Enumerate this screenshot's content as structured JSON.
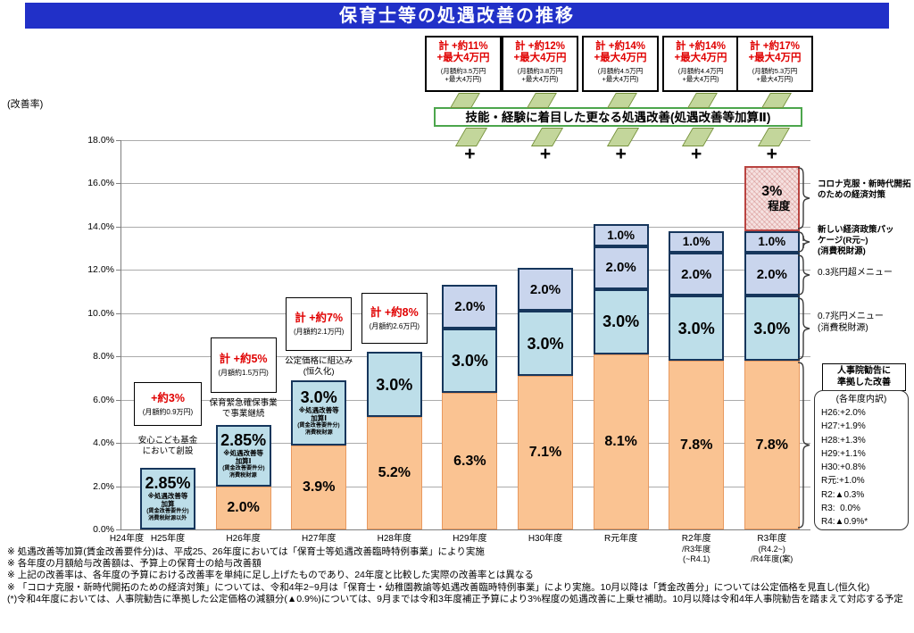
{
  "title": "保育士等の処遇改善の推移",
  "y_axis": {
    "unit_label": "(改善率)",
    "ticks": [
      {
        "v": 18,
        "label": "18.0%"
      },
      {
        "v": 16,
        "label": "16.0%"
      },
      {
        "v": 14,
        "label": "14.0%"
      },
      {
        "v": 12,
        "label": "12.0%"
      },
      {
        "v": 10,
        "label": "10.0%"
      },
      {
        "v": 8,
        "label": "8.0%"
      },
      {
        "v": 6,
        "label": "6.0%"
      },
      {
        "v": 4,
        "label": "4.0%"
      },
      {
        "v": 2,
        "label": "2.0%"
      },
      {
        "v": 0,
        "label": "0.0%"
      }
    ]
  },
  "banner": "技能・経験に着目した更なる処遇改善(処遇改善等加算Ⅱ)",
  "plus_sign": "+",
  "top_boxes": [
    {
      "red_lines": [
        "計 +約11%",
        "+最大4万円"
      ],
      "small_lines": [
        "(月額約3.5万円",
        "+最大4万円)"
      ]
    },
    {
      "red_lines": [
        "計 +約12%",
        "+最大4万円"
      ],
      "small_lines": [
        "(月額約3.8万円",
        "+最大4万円)"
      ]
    },
    {
      "red_lines": [
        "計 +約14%",
        "+最大4万円"
      ],
      "small_lines": [
        "(月額約4.5万円",
        "+最大4万円)"
      ]
    },
    {
      "red_lines": [
        "計 +約14%",
        "+最大4万円"
      ],
      "small_lines": [
        "(月額約4.4万円",
        "+最大4万円)"
      ]
    },
    {
      "red_lines": [
        "計 +約17%",
        "+最大4万円"
      ],
      "small_lines": [
        "(月額約5.3万円",
        "+最大4万円)"
      ]
    }
  ],
  "columns": [
    {
      "label_lines": [
        "H24年度"
      ],
      "segments": []
    },
    {
      "label_lines": [
        "H25年度"
      ],
      "segments": [
        {
          "color": "teal",
          "value": 2.85,
          "label": "2.85%",
          "sublines": [
            "※処遇改善等",
            "加算",
            "(賃金改善要件分)",
            "消費税財源以外"
          ]
        }
      ],
      "callout": {
        "red_line": "+約3%",
        "small_line": "(月額約0.9万円)",
        "caption": [
          "安心こども基金",
          "において創設"
        ]
      }
    },
    {
      "label_lines": [
        "H26年度"
      ],
      "segments": [
        {
          "color": "orange",
          "value": 2.0,
          "label": "2.0%"
        },
        {
          "color": "teal",
          "value": 2.85,
          "label": "2.85%",
          "sublines": [
            "※処遇改善等",
            "加算Ⅰ",
            "(賃金改善要件分)",
            "消費税財源"
          ]
        }
      ],
      "callout": {
        "red_line": "計 +約5%",
        "small_line": "(月額約1.5万円)",
        "caption": [
          "保育緊急確保事業",
          "で事業継続"
        ]
      }
    },
    {
      "label_lines": [
        "H27年度"
      ],
      "segments": [
        {
          "color": "orange",
          "value": 3.9,
          "label": "3.9%"
        },
        {
          "color": "teal",
          "value": 3.0,
          "label": "3.0%",
          "sublines": [
            "※処遇改善等",
            "加算Ⅰ",
            "(賃金改善要件分)",
            "消費税財源"
          ]
        }
      ],
      "callout": {
        "red_line": "計 +約7%",
        "small_line": "(月額約2.1万円)",
        "caption": [
          "公定価格に組込み",
          "(恒久化)"
        ]
      }
    },
    {
      "label_lines": [
        "H28年度"
      ],
      "segments": [
        {
          "color": "orange",
          "value": 5.2,
          "label": "5.2%"
        },
        {
          "color": "teal",
          "value": 3.0,
          "label": "3.0%"
        }
      ],
      "callout": {
        "red_line": "計 +約8%",
        "small_line": "(月額約2.6万円)"
      }
    },
    {
      "label_lines": [
        "H29年度"
      ],
      "segments": [
        {
          "color": "orange",
          "value": 6.3,
          "label": "6.3%"
        },
        {
          "color": "teal",
          "value": 3.0,
          "label": "3.0%"
        },
        {
          "color": "purple",
          "value": 2.0,
          "label": "2.0%"
        }
      ]
    },
    {
      "label_lines": [
        "H30年度"
      ],
      "segments": [
        {
          "color": "orange",
          "value": 7.1,
          "label": "7.1%"
        },
        {
          "color": "teal",
          "value": 3.0,
          "label": "3.0%"
        },
        {
          "color": "purple",
          "value": 2.0,
          "label": "2.0%"
        }
      ]
    },
    {
      "label_lines": [
        "R元年度"
      ],
      "segments": [
        {
          "color": "orange",
          "value": 8.1,
          "label": "8.1%"
        },
        {
          "color": "teal",
          "value": 3.0,
          "label": "3.0%"
        },
        {
          "color": "purple",
          "value": 2.0,
          "label": "2.0%"
        },
        {
          "color": "purple",
          "value": 1.0,
          "label": "1.0%"
        }
      ]
    },
    {
      "label_lines": [
        "R2年度",
        "/R3年度",
        "(~R4.1)"
      ],
      "segments": [
        {
          "color": "orange",
          "value": 7.8,
          "label": "7.8%"
        },
        {
          "color": "teal",
          "value": 3.0,
          "label": "3.0%"
        },
        {
          "color": "purple",
          "value": 2.0,
          "label": "2.0%"
        },
        {
          "color": "purple",
          "value": 1.0,
          "label": "1.0%"
        }
      ]
    },
    {
      "label_lines": [
        "R3年度",
        "(R4.2~)",
        "/R4年度(案)"
      ],
      "segments": [
        {
          "color": "orange",
          "value": 7.8,
          "label": "7.8%"
        },
        {
          "color": "teal",
          "value": 3.0,
          "label": "3.0%"
        },
        {
          "color": "purple",
          "value": 2.0,
          "label": "2.0%"
        },
        {
          "color": "purple",
          "value": 1.0,
          "label": "1.0%"
        },
        {
          "color": "red",
          "value": 3.0,
          "lines": [
            "3%",
            "程度"
          ]
        }
      ]
    }
  ],
  "right_panel": {
    "items": [
      {
        "lines": [
          "コロナ克服・新時代開拓",
          "のための経済対策"
        ],
        "bold": true
      },
      {
        "lines": [
          "新しい経済政策パッ",
          "ケージ(R元~)",
          "(消費税財源)"
        ],
        "bold": true
      },
      {
        "lines": [
          "0.3兆円超メニュー"
        ],
        "bold": false
      },
      {
        "lines": [
          "0.7兆円メニュー",
          "(消費税財源)"
        ],
        "bold": false
      }
    ],
    "jinji_box": [
      "人事院勧告に",
      "準拠した改善"
    ],
    "breakdown": {
      "title": "(各年度内訳)",
      "rows": [
        "H26:+2.0%",
        "H27:+1.9%",
        "H28:+1.3%",
        "H29:+1.1%",
        "H30:+0.8%",
        "R元:+1.0%",
        "R2:▲0.3%",
        "R3:  0.0%",
        "R4:▲0.9%*"
      ]
    }
  },
  "footnotes": [
    "※ 処遇改善等加算(賃金改善要件分)は、平成25、26年度においては「保育士等処遇改善臨時特例事業」により実施",
    "※ 各年度の月額給与改善額は、予算上の保育士の給与改善額",
    "※ 上記の改善率は、各年度の予算における改善率を単純に足し上げたものであり、24年度と比較した実際の改善率とは異なる",
    "※ 「コロナ克服・新時代開拓のための経済対策」については、令和4年2~9月は「保育士・幼稚園教諭等処遇改善臨時特例事業」により実施。10月以降は「賃金改善分」については公定価格を見直し(恒久化)",
    "(*)令和4年度においては、人事院勧告に準拠した公定価格の減額分(▲0.9%)については、9月までは令和3年度補正予算により3%程度の処遇改善に上乗せ補助。10月以降は令和4年人事院勧告を踏まえて対応する予定"
  ],
  "colors": {
    "title_bg": "#2130C8",
    "red_text": "#E00000",
    "orange": "#FAC392",
    "teal": "#BDDEE9",
    "purple": "#C9D5ED",
    "red_fill": "#F5E1E0",
    "red_border": "#B94441",
    "navy_border": "#16365C",
    "green_fill": "#C3D69B",
    "green_border": "#76923C",
    "banner_border": "#4CA64C"
  },
  "chart_data": {
    "type": "bar",
    "stacked": true,
    "title": "保育士等の処遇改善の推移",
    "ylabel": "(改善率)",
    "ylim": [
      0,
      18
    ],
    "y_tick_step": 2,
    "grid": true,
    "categories": [
      "H24年度",
      "H25年度",
      "H26年度",
      "H27年度",
      "H28年度",
      "H29年度",
      "H30年度",
      "R元年度",
      "R2年度/R3年度(~R4.1)",
      "R3年度(R4.2~)/R4年度(案)"
    ],
    "series": [
      {
        "name": "人事院勧告に準拠した改善(公定価格における給与改善)",
        "color": "#FAC392",
        "values": [
          0,
          0,
          2.0,
          3.9,
          5.2,
          6.3,
          7.1,
          8.1,
          7.8,
          7.8
        ]
      },
      {
        "name": "処遇改善等加算Ⅰ(賃金改善要件分)/0.7兆円メニュー(消費税財源)",
        "color": "#BDDEE9",
        "values": [
          0,
          2.85,
          2.85,
          3.0,
          3.0,
          3.0,
          3.0,
          3.0,
          3.0,
          3.0
        ]
      },
      {
        "name": "処遇改善等加算Ⅱ(0.3兆円超メニュー)",
        "color": "#C9D5ED",
        "values": [
          0,
          0,
          0,
          0,
          0,
          2.0,
          2.0,
          2.0,
          2.0,
          2.0
        ]
      },
      {
        "name": "新しい経済政策パッケージ(R元~)(消費税財源)",
        "color": "#C9D5ED",
        "values": [
          0,
          0,
          0,
          0,
          0,
          0,
          0,
          1.0,
          1.0,
          1.0
        ]
      },
      {
        "name": "コロナ克服・新時代開拓のための経済対策(3%程度)",
        "color": "#F5E1E0",
        "values": [
          0,
          0,
          0,
          0,
          0,
          0,
          0,
          0,
          0,
          3.0
        ]
      }
    ],
    "totals": [
      "",
      "+約3%",
      "+約5%",
      "+約7%",
      "+約8%",
      "+約11%",
      "+約12%",
      "+約14%",
      "+約14%",
      "+約17%"
    ]
  }
}
